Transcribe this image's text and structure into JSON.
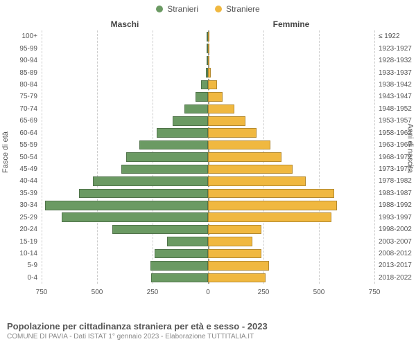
{
  "legend": {
    "male": "Stranieri",
    "female": "Straniere"
  },
  "columns": {
    "male": "Maschi",
    "female": "Femmine"
  },
  "axis_titles": {
    "left": "Fasce di età",
    "right": "Anni di nascita"
  },
  "footer": {
    "title": "Popolazione per cittadinanza straniera per età e sesso - 2023",
    "subtitle": "COMUNE DI PAVIA - Dati ISTAT 1° gennaio 2023 - Elaborazione TUTTITALIA.IT"
  },
  "chart": {
    "type": "population-pyramid",
    "colors": {
      "male": "#6b9a63",
      "female": "#f0b840",
      "grid": "#cccccc",
      "center": "#999977",
      "bg": "#ffffff"
    },
    "max": 750,
    "xticks": [
      750,
      500,
      250,
      0,
      250,
      500,
      750
    ],
    "age_groups": [
      "0-4",
      "5-9",
      "10-14",
      "15-19",
      "20-24",
      "25-29",
      "30-34",
      "35-39",
      "40-44",
      "45-49",
      "50-54",
      "55-59",
      "60-64",
      "65-69",
      "70-74",
      "75-79",
      "80-84",
      "85-89",
      "90-94",
      "95-99",
      "100+"
    ],
    "birth_years": [
      "2018-2022",
      "2013-2017",
      "2008-2012",
      "2003-2007",
      "1998-2002",
      "1993-1997",
      "1988-1992",
      "1983-1987",
      "1978-1982",
      "1973-1977",
      "1968-1972",
      "1963-1967",
      "1958-1962",
      "1953-1957",
      "1948-1952",
      "1943-1947",
      "1938-1942",
      "1933-1937",
      "1928-1932",
      "1923-1927",
      "≤ 1922"
    ],
    "male": [
      255,
      260,
      240,
      185,
      430,
      660,
      735,
      580,
      520,
      390,
      370,
      310,
      230,
      160,
      105,
      55,
      30,
      8,
      3,
      1,
      0
    ],
    "female": [
      260,
      275,
      240,
      200,
      240,
      555,
      580,
      570,
      440,
      380,
      330,
      280,
      220,
      170,
      120,
      65,
      40,
      12,
      5,
      2,
      0
    ]
  }
}
